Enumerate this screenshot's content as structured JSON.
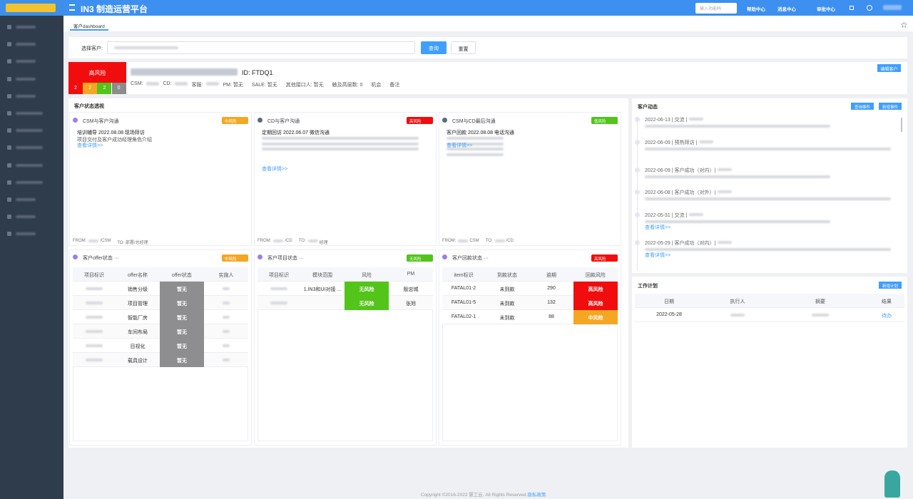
{
  "topbar": {
    "title": "IN3 制造运营平台",
    "search_placeholder": "输入功能码",
    "links": [
      "帮助中心",
      "消息中心",
      "审批中心"
    ]
  },
  "tabs": [
    "客户dashboard"
  ],
  "search": {
    "label": "选择客户:",
    "query_button": "查询",
    "reset_button": "重置"
  },
  "customer": {
    "risk": "高风险",
    "risk_counts": [
      2,
      2,
      2,
      0
    ],
    "id": "ID: FTDQ1",
    "fields": [
      "CSM:",
      "CD:",
      "客服:",
      "PM: 暂无",
      "SALE: 暂无",
      "其他接口人: 暂无",
      "触及高层数: 0",
      "机会",
      "备注"
    ],
    "edit_button": "编辑客户"
  },
  "status": {
    "title": "客户状态透视",
    "cards": [
      {
        "title": "CSM与客户沟通",
        "badge": "中风险",
        "headline": "培训辅导  2022.08.08  现场拜访",
        "text": "项目交付及客户成功经理角色介绍",
        "link": "查看详情>>",
        "footer": [
          "FROM:",
          "/CSM",
          "TO: 部署/总经理"
        ]
      },
      {
        "title": "CD与客户沟通",
        "badge": "高风险",
        "headline": "定期回访  2022.06.07  微信沟通",
        "link": "查看详情>>",
        "footer": [
          "FROM:",
          "/CD",
          "TO:",
          "经理"
        ]
      },
      {
        "title": "CSM与CD最后沟通",
        "badge": "低风险",
        "headline": "客户回款  2022.08.08  电话沟通",
        "link": "查看详情>>",
        "footer": [
          "FROM:",
          "CSM",
          "TO:",
          "/CD"
        ]
      }
    ]
  },
  "offer": {
    "title": "客户offer状态 ···",
    "badge": "中风险",
    "headers": [
      "项目标识",
      "offer名称",
      "offer状态",
      "实施人"
    ],
    "rows": [
      [
        "销售分级",
        "暂无"
      ],
      [
        "项目管理",
        "暂无"
      ],
      [
        "智能厂房",
        "暂无"
      ],
      [
        "车间布局",
        "暂无"
      ],
      [
        "目视化",
        "暂无"
      ],
      [
        "载具设计",
        "暂无"
      ]
    ]
  },
  "project": {
    "title": "客户项目状态 ···",
    "badge": "无风险",
    "headers": [
      "项目标识",
      "模块范围",
      "风险",
      "PM"
    ],
    "rows": [
      [
        "1.IN3和UI对接 ...",
        "无风险",
        "殷忠城"
      ],
      [
        "",
        "无风险",
        "张旭"
      ]
    ]
  },
  "payment": {
    "title": "客户回款状态 ···",
    "badge": "高风险",
    "headers": [
      "item标识",
      "到款状态",
      "逾期",
      "回款风险"
    ],
    "rows": [
      [
        "FATAL01-2",
        "未到款",
        "290",
        "高风险"
      ],
      [
        "FATAL01-5",
        "未到款",
        "132",
        "高风险"
      ],
      [
        "FATAL02-1",
        "未到款",
        "88",
        "中风险"
      ]
    ]
  },
  "dynamics": {
    "title": "客户动态",
    "buttons": [
      "查询事件",
      "新增事件"
    ],
    "items": [
      {
        "head": "2022-06-13 | 交流 |"
      },
      {
        "head": "2022-06-09 | 预热拜访 |"
      },
      {
        "head": "2022-06-09 | 客户成功（对内）|"
      },
      {
        "head": "2022-06-08 | 客户成功（对外）|"
      },
      {
        "head": "2022-05-31 | 交流 |",
        "link": "查看详情>>"
      },
      {
        "head": "2022-05-29 | 客户成功（对内）|",
        "link": "查看详情>>"
      }
    ]
  },
  "work_plan": {
    "title": "工作计划",
    "button": "新增计划",
    "headers": [
      "日期",
      "执行人",
      "摘要",
      "结果"
    ],
    "rows": [
      {
        "date": "2022-05-28",
        "result": "待办"
      }
    ]
  },
  "footer": {
    "copyright": "Copyright ©2016-2022 慧工云. All Rights Reserved.",
    "privacy": "隐私政策"
  }
}
